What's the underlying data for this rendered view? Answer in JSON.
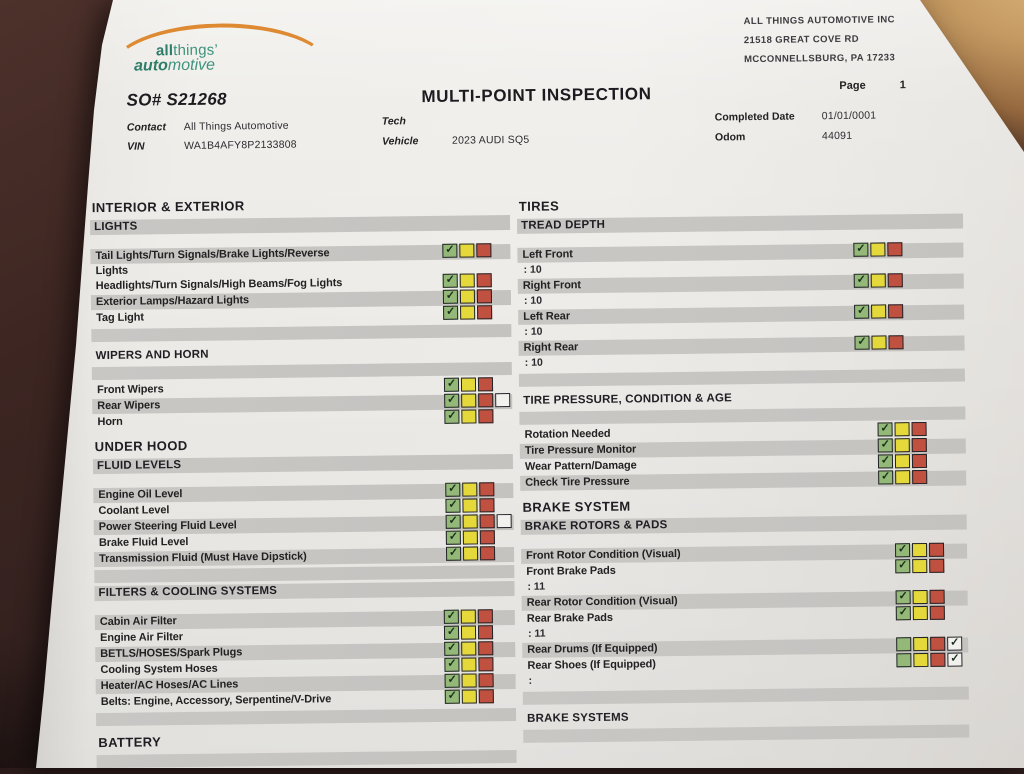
{
  "letterhead": {
    "logo": {
      "line1_bold": "all",
      "line1_rest": "things’",
      "line2_bold": "auto",
      "line2_rest": "motive"
    },
    "company_lines": [
      "ALL THINGS AUTOMOTIVE INC",
      "21518 GREAT COVE RD",
      "MCCONNELLSBURG, PA   17233"
    ]
  },
  "header": {
    "so_number": "SO# S21268",
    "title": "MULTI-POINT INSPECTION",
    "page_label": "Page",
    "page_number": "1"
  },
  "info": {
    "contact_label": "Contact",
    "contact_value": "All Things Automotive",
    "vin_label": "VIN",
    "vin_value": "WA1B4AFY8P2133808",
    "tech_label": "Tech",
    "tech_value": "",
    "vehicle_label": "Vehicle",
    "vehicle_value": "2023 AUDI SQ5",
    "completed_label": "Completed Date",
    "completed_value": "01/01/0001",
    "odom_label": "Odom",
    "odom_value": "44091"
  },
  "status_colors": {
    "good": "#93b877",
    "caution": "#e4d83b",
    "bad": "#c05040",
    "na": "#f3f1ee"
  },
  "brand_colors": {
    "logo_teal": "#2f7d68",
    "logo_arc_orange": "#dd8a33"
  },
  "columns": [
    {
      "id": "left",
      "sections": [
        {
          "id": "interior_exterior",
          "header": {
            "label": "INTERIOR & EXTERIOR",
            "style": "category"
          }
        },
        {
          "id": "lights",
          "header": {
            "label": "LIGHTS",
            "style": "band"
          },
          "gap_after_header": true,
          "trailing_band": true,
          "items": [
            {
              "label": "Tail Lights/Turn Signals/Brake Lights/Reverse",
              "label2": "Lights",
              "band": true,
              "boxes": "gyr"
            },
            {
              "label": "Headlights/Turn Signals/High Beams/Fog Lights",
              "band": false,
              "boxes": "gyr"
            },
            {
              "label": "Exterior Lamps/Hazard Lights",
              "band": true,
              "boxes": "gyr"
            },
            {
              "label": "Tag Light",
              "band": false,
              "boxes": "gyr"
            }
          ]
        },
        {
          "id": "wipers_horn",
          "header": {
            "label": "WIPERS AND HORN",
            "style": "plain"
          },
          "band_after_header": true,
          "items": [
            {
              "label": "Front Wipers",
              "band": false,
              "boxes": "gyr"
            },
            {
              "label": "Rear Wipers",
              "band": true,
              "boxes": "gyr_na"
            },
            {
              "label": "Horn",
              "band": false,
              "boxes": "gyr"
            }
          ]
        },
        {
          "id": "under_hood",
          "header": {
            "label": "UNDER HOOD",
            "style": "category"
          }
        },
        {
          "id": "fluid_levels",
          "header": {
            "label": "FLUID LEVELS",
            "style": "band"
          },
          "gap_after_header": true,
          "trailing_band": true,
          "items": [
            {
              "label": "Engine Oil Level",
              "band": true,
              "boxes": "gyr"
            },
            {
              "label": "Coolant Level",
              "band": false,
              "boxes": "gyr"
            },
            {
              "label": "Power Steering Fluid Level",
              "band": true,
              "boxes": "gyr_na"
            },
            {
              "label": "Brake Fluid Level",
              "band": false,
              "boxes": "gyr"
            },
            {
              "label": "Transmission Fluid (Must Have Dipstick)",
              "band": true,
              "boxes": "gyr"
            }
          ]
        },
        {
          "id": "filters_cooling",
          "header": {
            "label": "FILTERS & COOLING SYSTEMS",
            "style": "band"
          },
          "gap_after_header": true,
          "trailing_band": true,
          "items": [
            {
              "label": "Cabin Air Filter",
              "band": true,
              "boxes": "gyr"
            },
            {
              "label": "Engine Air Filter",
              "band": false,
              "boxes": "gyr"
            },
            {
              "label": "BETLS/HOSES/Spark Plugs",
              "band": true,
              "boxes": "gyr"
            },
            {
              "label": "Cooling System Hoses",
              "band": false,
              "boxes": "gyr"
            },
            {
              "label": "Heater/AC Hoses/AC Lines",
              "band": true,
              "boxes": "gyr"
            },
            {
              "label": "Belts: Engine, Accessory, Serpentine/V-Drive",
              "band": false,
              "boxes": "gyr"
            }
          ]
        },
        {
          "id": "battery",
          "header": {
            "label": "BATTERY",
            "style": "category"
          },
          "trailing_band": true
        }
      ]
    },
    {
      "id": "right",
      "sections": [
        {
          "id": "tires",
          "header": {
            "label": "TIRES",
            "style": "category"
          }
        },
        {
          "id": "tread_depth",
          "header": {
            "label": "TREAD DEPTH",
            "style": "band"
          },
          "gap_after_header": true,
          "trailing_band": true,
          "items": [
            {
              "label": "Left Front",
              "value": ": 10",
              "band": true,
              "boxes": "gyr"
            },
            {
              "label": "Right Front",
              "value": ": 10",
              "band": true,
              "boxes": "gyr"
            },
            {
              "label": "Left Rear",
              "value": ": 10",
              "band": true,
              "boxes": "gyr"
            },
            {
              "label": "Right Rear",
              "value": ": 10",
              "band": true,
              "boxes": "gyr"
            }
          ]
        },
        {
          "id": "tire_pressure",
          "header": {
            "label": "TIRE PRESSURE, CONDITION & AGE",
            "style": "plain"
          },
          "band_after_header": true,
          "items": [
            {
              "label": "Rotation Needed",
              "band": false,
              "boxes": "gyr"
            },
            {
              "label": "Tire Pressure Monitor",
              "band": true,
              "boxes": "gyr"
            },
            {
              "label": "Wear Pattern/Damage",
              "band": false,
              "boxes": "gyr"
            },
            {
              "label": "Check Tire Pressure",
              "band": true,
              "boxes": "gyr"
            }
          ]
        },
        {
          "id": "brake_system",
          "header": {
            "label": "BRAKE SYSTEM",
            "style": "category"
          }
        },
        {
          "id": "brake_rotors_pads",
          "header": {
            "label": "BRAKE ROTORS & PADS",
            "style": "band"
          },
          "gap_after_header": true,
          "trailing_band": true,
          "items": [
            {
              "label": "Front Rotor Condition (Visual)",
              "band": true,
              "boxes": "gyr"
            },
            {
              "label": "Front Brake Pads",
              "value": ": 11",
              "band": false,
              "boxes": "gyr"
            },
            {
              "label": "Rear Rotor Condition (Visual)",
              "band": true,
              "boxes": "gyr"
            },
            {
              "label": "Rear Brake Pads",
              "value": ": 11",
              "band": false,
              "boxes": "gyr"
            },
            {
              "label": "Rear Drums (If Equipped)",
              "band": true,
              "boxes": "na_checked"
            },
            {
              "label": "Rear Shoes (If Equipped)",
              "value": ":",
              "band": false,
              "boxes": "na_checked"
            }
          ]
        },
        {
          "id": "brake_systems",
          "header": {
            "label": "BRAKE SYSTEMS",
            "style": "plain"
          },
          "band_after_header": true
        }
      ]
    }
  ]
}
